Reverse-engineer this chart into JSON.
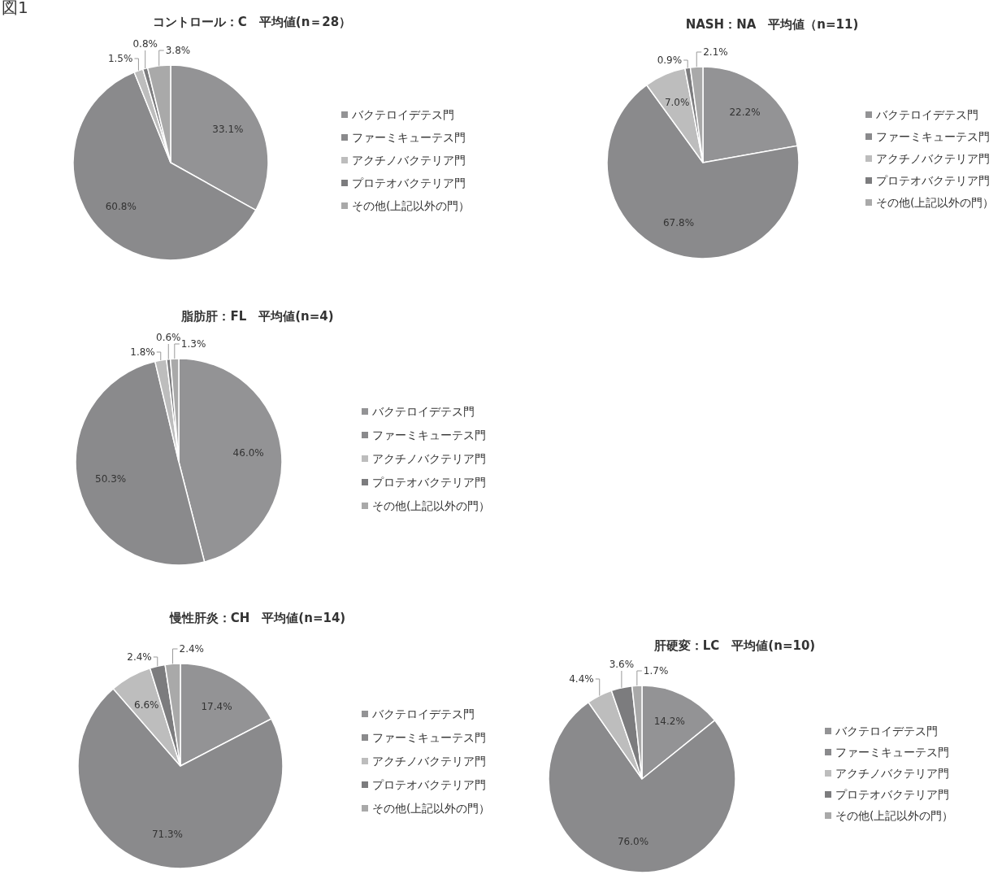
{
  "chart_data": [
    {
      "type": "pie",
      "title": "コントロール：C　平均値(n＝28）",
      "annotations": [
        "図1"
      ],
      "categories": [
        "バクテロイデテス門",
        "ファーミキューテス門",
        "アクチノバクテリア門",
        "プロテオバクテリア門",
        "その他(上記以外の門）"
      ],
      "values": [
        33.1,
        60.8,
        1.5,
        0.8,
        3.8
      ],
      "value_labels": [
        "33.1%",
        "60.8%",
        "1.5%",
        "0.8%",
        "3.8%"
      ],
      "colors": [
        "#939395",
        "#8a8a8c",
        "#bdbdbd",
        "#7c7c7e",
        "#a9a9a9"
      ],
      "legend": "right"
    },
    {
      "type": "pie",
      "title": "NASH：NA　平均値（n=11)",
      "categories": [
        "バクテロイデテス門",
        "ファーミキューテス門",
        "アクチノバクテリア門",
        "プロテオバクテリア門",
        "その他(上記以外の門）"
      ],
      "values": [
        22.2,
        67.8,
        7.0,
        0.9,
        2.1
      ],
      "value_labels": [
        "22.2%",
        "67.8%",
        "7.0%",
        "0.9%",
        "2.1%"
      ],
      "colors": [
        "#939395",
        "#8a8a8c",
        "#bdbdbd",
        "#7c7c7e",
        "#a9a9a9"
      ],
      "legend": "right"
    },
    {
      "type": "pie",
      "title": "脂肪肝：FL　平均値(n=4)",
      "categories": [
        "バクテロイデテス門",
        "ファーミキューテス門",
        "アクチノバクテリア門",
        "プロテオバクテリア門",
        "その他(上記以外の門）"
      ],
      "values": [
        46.0,
        50.3,
        1.8,
        0.6,
        1.3
      ],
      "value_labels": [
        "46.0%",
        "50.3%",
        "1.8%",
        "0.6%",
        "1.3%"
      ],
      "colors": [
        "#939395",
        "#8a8a8c",
        "#bdbdbd",
        "#7c7c7e",
        "#a9a9a9"
      ],
      "legend": "right"
    },
    {
      "type": "pie",
      "title": "慢性肝炎：CH　平均値(n=14)",
      "categories": [
        "バクテロイデテス門",
        "ファーミキューテス門",
        "アクチノバクテリア門",
        "プロテオバクテリア門",
        "その他(上記以外の門）"
      ],
      "values": [
        17.4,
        71.3,
        6.6,
        2.4,
        2.4
      ],
      "value_labels": [
        "17.4%",
        "71.3%",
        "6.6%",
        "2.4%",
        "2.4%"
      ],
      "colors": [
        "#939395",
        "#8a8a8c",
        "#bdbdbd",
        "#7c7c7e",
        "#a9a9a9"
      ],
      "legend": "right"
    },
    {
      "type": "pie",
      "title": "肝硬変：LC　平均値(n=10)",
      "categories": [
        "バクテロイデテス門",
        "ファーミキューテス門",
        "アクチノバクテリア門",
        "プロテオバクテリア門",
        "その他(上記以外の門）"
      ],
      "values": [
        14.2,
        76.0,
        4.4,
        3.6,
        1.7
      ],
      "value_labels": [
        "14.2%",
        "76.0%",
        "4.4%",
        "3.6%",
        "1.7%"
      ],
      "colors": [
        "#939395",
        "#8a8a8c",
        "#bdbdbd",
        "#7c7c7e",
        "#a9a9a9"
      ],
      "legend": "right"
    }
  ]
}
